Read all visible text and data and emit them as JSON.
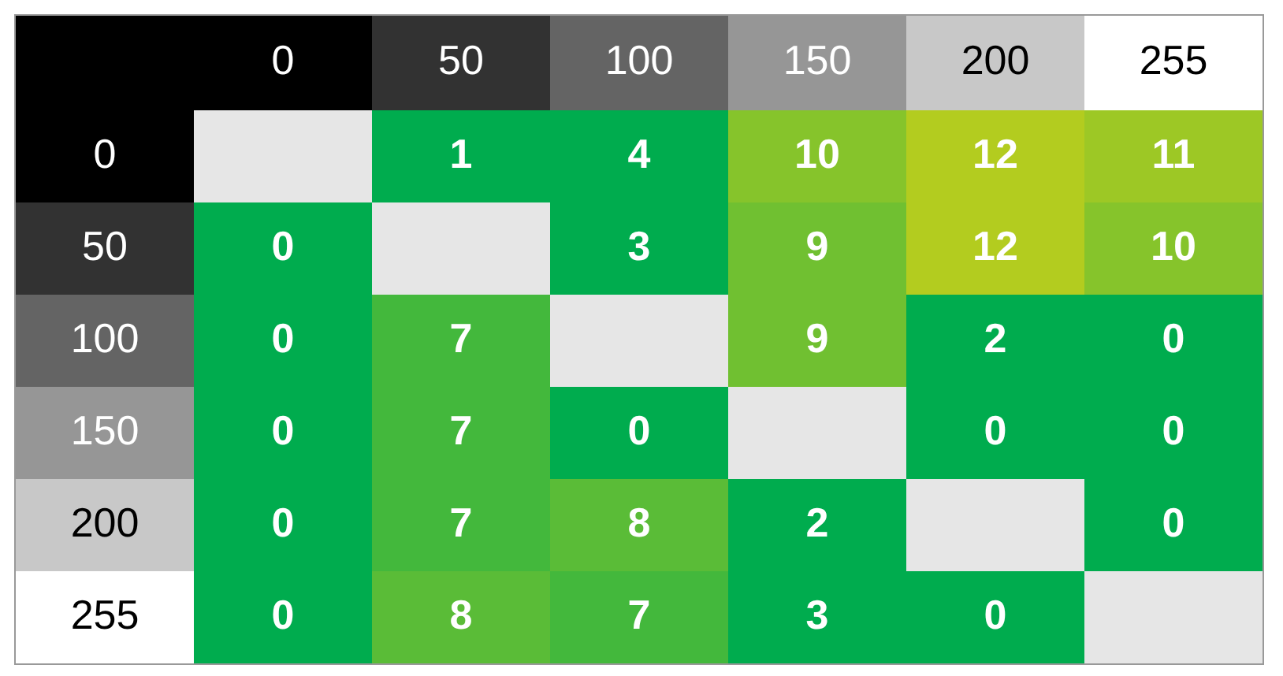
{
  "chart_data": {
    "type": "heatmap",
    "data_labels": true,
    "categories": [
      "0",
      "50",
      "100",
      "150",
      "200",
      "255"
    ],
    "y_categories": [
      "0",
      "50",
      "100",
      "150",
      "200",
      "255"
    ],
    "cells": [
      [
        null,
        1,
        4,
        10,
        12,
        11
      ],
      [
        0,
        null,
        3,
        9,
        12,
        10
      ],
      [
        0,
        7,
        null,
        9,
        2,
        0
      ],
      [
        0,
        7,
        0,
        null,
        0,
        0
      ],
      [
        0,
        7,
        8,
        2,
        null,
        0
      ],
      [
        0,
        8,
        7,
        3,
        0,
        null
      ]
    ]
  }
}
